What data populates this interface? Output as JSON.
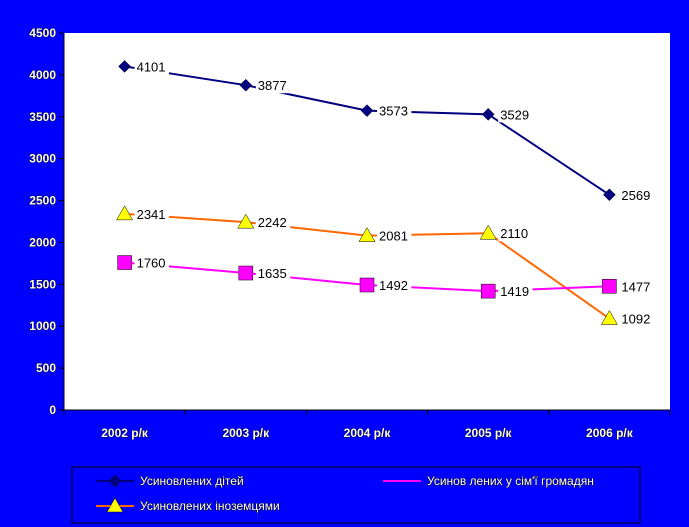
{
  "chart_data": {
    "type": "line",
    "categories": [
      "2002 р/к",
      "2003 р/к",
      "2004 р/к",
      "2005 р/к",
      "2006 р/к"
    ],
    "ylim": [
      0,
      4500
    ],
    "yticks": [
      0,
      500,
      1000,
      1500,
      2000,
      2500,
      3000,
      3500,
      4000,
      4500
    ],
    "grid": false,
    "legend_position": "bottom",
    "series": [
      {
        "name": "Усиновлених дітей",
        "values": [
          4101,
          3877,
          3573,
          3529,
          2569
        ],
        "color": "#000080",
        "marker": "diamond"
      },
      {
        "name": "Усиновлених іноземцями",
        "values": [
          2341,
          2242,
          2081,
          2110,
          1092
        ],
        "color": "#ff6600",
        "marker_color": "#ffff00",
        "marker": "triangle"
      },
      {
        "name": "Усинов лених у сім'ї громадян",
        "values": [
          1760,
          1635,
          1492,
          1419,
          1477
        ],
        "color": "#ff00ff",
        "marker": "square"
      }
    ]
  }
}
